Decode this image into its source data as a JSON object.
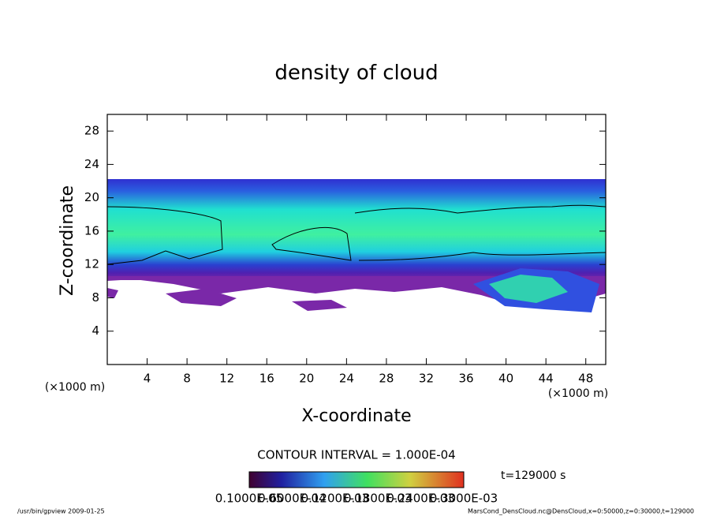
{
  "chart_data": {
    "type": "contour",
    "title": "density of cloud",
    "x_label": "X-coordinate",
    "y_label": "Z-coordinate",
    "x_unit": "(×1000 m)",
    "y_unit": "(×1000 m)",
    "xlim": [
      0,
      50
    ],
    "xticks": [
      4,
      8,
      12,
      16,
      20,
      24,
      28,
      32,
      36,
      40,
      44,
      48
    ],
    "ylim": [
      0,
      30
    ],
    "yticks": [
      4,
      8,
      12,
      16,
      20,
      24,
      28
    ],
    "contour_interval": "CONTOUR INTERVAL = 1.000E-04",
    "time": "t=129000 s",
    "colorbar_labels": [
      "0.1000E-05",
      "0.6000E-04",
      "0.1200E-03",
      "0.1800E-03",
      "0.2400E-03",
      "0.3000E-03"
    ],
    "footer_left": "/usr/bin/gpview  2009-01-25",
    "footer_right": "MarsCond_DensCloud.nc@DensCloud,x=0:50000,z=0:30000,t=129000"
  }
}
